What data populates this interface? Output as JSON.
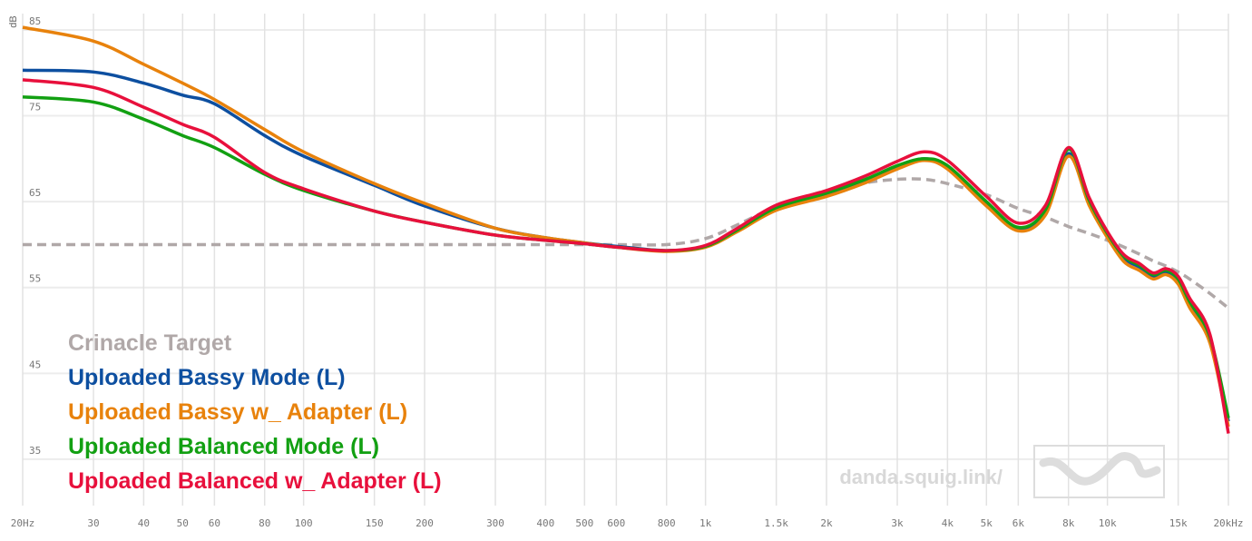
{
  "chart_data": {
    "type": "line",
    "y_label": "dB",
    "watermark": "danda.squig.link/",
    "log_x": true,
    "grid": true,
    "legend": "lower-left",
    "xlim": [
      20,
      20000
    ],
    "ylim": [
      29.6,
      86.9
    ],
    "xticks": [
      {
        "value": 20,
        "label": "20Hz"
      },
      30,
      40,
      50,
      60,
      80,
      100,
      150,
      200,
      300,
      400,
      500,
      600,
      800,
      {
        "value": 1000,
        "label": "1k"
      },
      {
        "value": 1500,
        "label": "1.5k"
      },
      {
        "value": 2000,
        "label": "2k"
      },
      {
        "value": 3000,
        "label": "3k"
      },
      {
        "value": 4000,
        "label": "4k"
      },
      {
        "value": 5000,
        "label": "5k"
      },
      {
        "value": 6000,
        "label": "6k"
      },
      {
        "value": 8000,
        "label": "8k"
      },
      {
        "value": 10000,
        "label": "10k"
      },
      {
        "value": 15000,
        "label": "15k"
      },
      {
        "value": 20000,
        "label": "20kHz"
      }
    ],
    "yticks": [
      35,
      45,
      55,
      65,
      75,
      85
    ],
    "x": [
      20,
      30,
      40,
      50,
      60,
      80,
      100,
      150,
      200,
      300,
      400,
      500,
      600,
      800,
      1000,
      1200,
      1500,
      2000,
      2500,
      3000,
      3500,
      4000,
      5000,
      6000,
      7000,
      8000,
      9000,
      10000,
      11000,
      12000,
      13000,
      14000,
      15000,
      16000,
      18000,
      20000
    ],
    "series": [
      {
        "name": "Crinacle Target",
        "color": "#b0a8a8",
        "dashed": true,
        "values": [
          60,
          60,
          60,
          60,
          60,
          60,
          60,
          60,
          60,
          60,
          60,
          60,
          60,
          60,
          60.7,
          62.3,
          64.4,
          66.3,
          67.2,
          67.6,
          67.6,
          67.1,
          65.8,
          64.2,
          63.2,
          62.1,
          61.3,
          60.5,
          59.7,
          58.9,
          58.1,
          57.5,
          56.8,
          56,
          54.3,
          52.6
        ]
      },
      {
        "name": "Uploaded Bassy Mode (L)",
        "color": "#0d4fa0",
        "values": [
          80.3,
          80.1,
          78.8,
          77.4,
          76.4,
          72.7,
          70.3,
          66.9,
          64.5,
          61.9,
          60.8,
          60.2,
          59.8,
          59.3,
          59.8,
          61.6,
          64.2,
          65.8,
          67.4,
          69,
          70,
          69,
          64.8,
          61.9,
          63.7,
          70.6,
          64.8,
          61.1,
          58.4,
          57.4,
          56.3,
          56.8,
          55.8,
          53.1,
          48.9,
          39.4
        ]
      },
      {
        "name": "Uploaded Bassy w_ Adapter (L)",
        "color": "#e8820c",
        "values": [
          85.3,
          83.7,
          81,
          78.8,
          76.9,
          73.4,
          70.8,
          67.1,
          64.8,
          61.9,
          60.8,
          60.2,
          59.7,
          59.2,
          59.7,
          61.5,
          64,
          65.6,
          67.2,
          68.8,
          69.8,
          68.8,
          64.5,
          61.6,
          63.4,
          70.3,
          64.6,
          60.8,
          58,
          57,
          56,
          56.5,
          55.4,
          52.7,
          48.5,
          38.8
        ]
      },
      {
        "name": "Uploaded Balanced Mode (L)",
        "color": "#12a012",
        "values": [
          77.2,
          76.6,
          74.6,
          72.7,
          71.3,
          68.2,
          66.3,
          63.9,
          62.6,
          61.1,
          60.5,
          60.1,
          59.7,
          59.3,
          59.8,
          61.7,
          64.3,
          66,
          67.6,
          69.2,
          70,
          69.2,
          65,
          62,
          64,
          71.1,
          65.2,
          61.3,
          58.6,
          57.6,
          56.5,
          57,
          56,
          53.4,
          49.2,
          39.8
        ]
      },
      {
        "name": "Uploaded Balanced w_ Adapter (L)",
        "color": "#e8103c",
        "values": [
          79.2,
          78.3,
          76,
          74,
          72.5,
          68.4,
          66.5,
          63.9,
          62.6,
          61.1,
          60.5,
          60.1,
          59.7,
          59.3,
          59.9,
          61.9,
          64.6,
          66.3,
          68,
          69.7,
          70.8,
          69.8,
          65.6,
          62.5,
          64.5,
          71.3,
          65.5,
          61.5,
          58.8,
          57.8,
          56.7,
          57.2,
          56.3,
          53.8,
          49.5,
          38
        ]
      }
    ]
  }
}
